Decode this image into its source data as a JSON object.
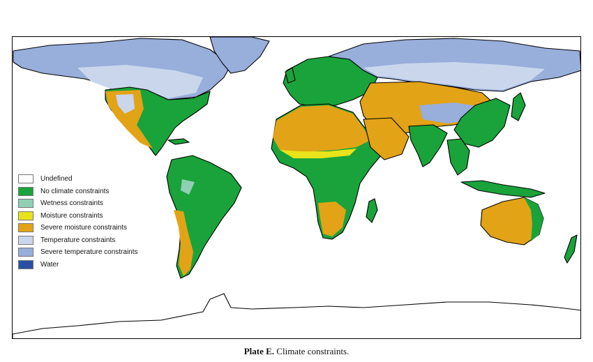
{
  "map": {
    "colors": {
      "undefined": "#ffffff",
      "no_constraints": "#1aa33a",
      "wetness": "#8fd0b4",
      "moisture": "#e8e31a",
      "severe_moisture": "#e2a317",
      "temperature": "#c9d6ec",
      "severe_temperature": "#98aedb",
      "water": "#2b4fa6"
    }
  },
  "legend": [
    {
      "label": "Undefined",
      "color": "#ffffff"
    },
    {
      "label": "No climate constraints",
      "color": "#1aa33a"
    },
    {
      "label": "Wetness constraints",
      "color": "#8fd0b4"
    },
    {
      "label": "Moisture constraints",
      "color": "#e8e31a"
    },
    {
      "label": "Severe moisture constraints",
      "color": "#e2a317"
    },
    {
      "label": "Temperature constraints",
      "color": "#c9d6ec"
    },
    {
      "label": "Severe temperature constraints",
      "color": "#98aedb"
    },
    {
      "label": "Water",
      "color": "#2b4fa6"
    }
  ],
  "caption": {
    "label": "Plate E.",
    "text": " Climate constraints."
  }
}
